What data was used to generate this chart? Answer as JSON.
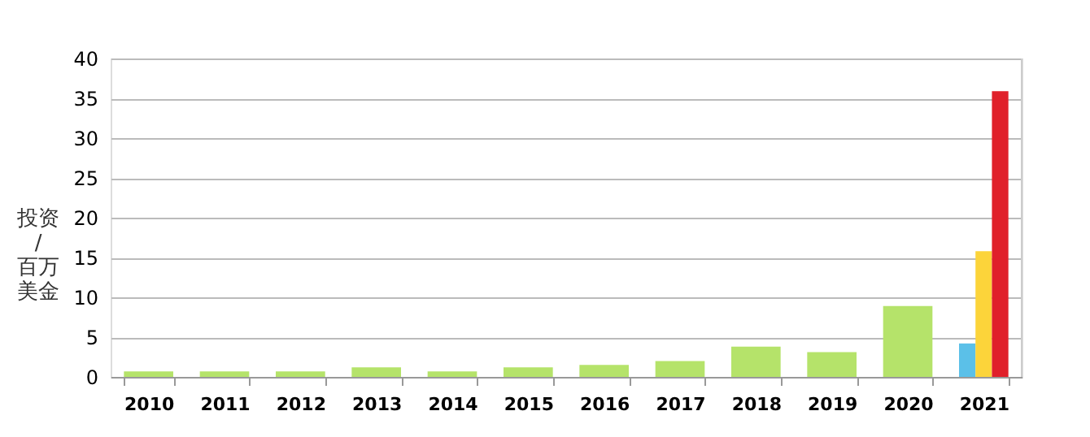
{
  "chart_data": {
    "type": "bar",
    "ylabel": "投资/百万美金",
    "categories": [
      "2010",
      "2011",
      "2012",
      "2013",
      "2014",
      "2015",
      "2016",
      "2017",
      "2018",
      "2019",
      "2020",
      "2021"
    ],
    "series": [
      {
        "color": "#b5e36a",
        "values": [
          0.7,
          0.7,
          0.7,
          1.2,
          0.7,
          1.2,
          1.5,
          2.0,
          3.8,
          3.1,
          8.9,
          null
        ]
      },
      {
        "color": "#5bc0e8",
        "values": [
          null,
          null,
          null,
          null,
          null,
          null,
          null,
          null,
          null,
          null,
          null,
          4.2
        ]
      },
      {
        "color": "#fcd43a",
        "values": [
          null,
          null,
          null,
          null,
          null,
          null,
          null,
          null,
          null,
          null,
          null,
          15.8
        ]
      },
      {
        "color": "#e0202a",
        "values": [
          null,
          null,
          null,
          null,
          null,
          null,
          null,
          null,
          null,
          null,
          null,
          35.9
        ]
      }
    ],
    "ylim": [
      0,
      40
    ],
    "yticks": [
      0,
      5,
      10,
      15,
      20,
      25,
      30,
      35,
      40
    ],
    "grid": "y",
    "legend": false
  }
}
